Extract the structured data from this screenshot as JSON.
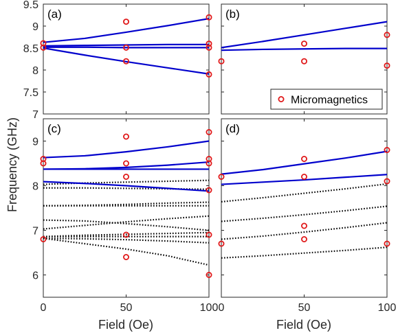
{
  "figure": {
    "ylabel": "Frequency (GHz)",
    "xlabel": "Field (Oe)",
    "legend_label": "Micromagnetics"
  },
  "colors": {
    "theory_line": "#0000cc",
    "dotted_line": "#000000",
    "marker": "#e0191a",
    "axes": "#262626"
  },
  "chart_data": [
    {
      "type": "line",
      "panel": "(a)",
      "xlim": [
        0,
        100
      ],
      "ylim": [
        7,
        9.5
      ],
      "xticks": [
        0,
        50,
        100
      ],
      "yticks": [
        7,
        7.5,
        8,
        8.5,
        9,
        9.5
      ],
      "ytick_labels": [
        "7",
        "7.5",
        "8",
        "8.5",
        "9",
        "9.5"
      ],
      "show_xtick_labels": false,
      "show_ytick_labels": true,
      "solid_lines": [
        {
          "x": [
            0,
            25,
            50,
            75,
            100
          ],
          "y": [
            8.63,
            8.72,
            8.86,
            9.01,
            9.17
          ]
        },
        {
          "x": [
            0,
            25,
            50,
            75,
            100
          ],
          "y": [
            8.55,
            8.56,
            8.57,
            8.58,
            8.58
          ]
        },
        {
          "x": [
            0,
            25,
            50,
            75,
            100
          ],
          "y": [
            8.52,
            8.52,
            8.51,
            8.51,
            8.51
          ]
        },
        {
          "x": [
            0,
            25,
            50,
            75,
            100
          ],
          "y": [
            8.5,
            8.34,
            8.19,
            8.05,
            7.91
          ]
        }
      ],
      "dotted_lines": [],
      "markers": {
        "x": [
          0,
          0,
          50,
          50,
          50,
          100,
          100,
          100,
          100
        ],
        "y": [
          8.61,
          8.51,
          9.1,
          8.51,
          8.2,
          9.2,
          8.6,
          8.51,
          7.9
        ]
      }
    },
    {
      "type": "line",
      "panel": "(b)",
      "xlim": [
        0,
        100
      ],
      "ylim": [
        7,
        9.5
      ],
      "xticks": [
        0,
        50,
        100
      ],
      "yticks": [
        7,
        7.5,
        8,
        8.5,
        9,
        9.5
      ],
      "ytick_labels": [],
      "show_xtick_labels": false,
      "show_ytick_labels": false,
      "legend": {
        "position": "bottom-right"
      },
      "solid_lines": [
        {
          "x": [
            0,
            25,
            50,
            75,
            100
          ],
          "y": [
            8.51,
            8.65,
            8.8,
            8.95,
            9.1
          ]
        },
        {
          "x": [
            0,
            25,
            50,
            75,
            100
          ],
          "y": [
            8.45,
            8.47,
            8.48,
            8.49,
            8.49
          ]
        }
      ],
      "dotted_lines": [],
      "markers": {
        "x": [
          0,
          50,
          50,
          100,
          100
        ],
        "y": [
          8.2,
          8.6,
          8.2,
          8.8,
          8.1
        ]
      }
    },
    {
      "type": "line",
      "panel": "(c)",
      "xlim": [
        0,
        100
      ],
      "ylim": [
        5.5,
        9.5
      ],
      "xticks": [
        0,
        50,
        100
      ],
      "xtick_labels": [
        "0",
        "50",
        "100"
      ],
      "yticks": [
        6,
        7,
        8,
        9
      ],
      "ytick_labels": [
        "6",
        "7",
        "8",
        "9"
      ],
      "show_xtick_labels": true,
      "show_ytick_labels": true,
      "solid_lines": [
        {
          "x": [
            0,
            25,
            50,
            75,
            100
          ],
          "y": [
            8.63,
            8.67,
            8.76,
            8.87,
            9.0
          ]
        },
        {
          "x": [
            0,
            25,
            50,
            75,
            100
          ],
          "y": [
            8.37,
            8.38,
            8.41,
            8.46,
            8.53
          ]
        },
        {
          "x": [
            0,
            25,
            50,
            75,
            100
          ],
          "y": [
            8.37,
            8.37,
            8.37,
            8.37,
            8.37
          ]
        },
        {
          "x": [
            0,
            25,
            50,
            75,
            100
          ],
          "y": [
            8.09,
            8.05,
            8.0,
            7.94,
            7.88
          ]
        }
      ],
      "dotted_lines": [
        {
          "x": [
            0,
            25,
            50,
            75,
            100
          ],
          "y": [
            8.03,
            8.06,
            8.08,
            8.1,
            8.12
          ]
        },
        {
          "x": [
            0,
            25,
            50,
            75,
            100
          ],
          "y": [
            7.95,
            7.95,
            7.94,
            7.93,
            7.92
          ]
        },
        {
          "x": [
            0,
            25,
            50,
            75,
            100
          ],
          "y": [
            7.55,
            7.56,
            7.58,
            7.61,
            7.63
          ]
        },
        {
          "x": [
            0,
            25,
            50,
            75,
            100
          ],
          "y": [
            7.55,
            7.55,
            7.55,
            7.55,
            7.55
          ]
        },
        {
          "x": [
            0,
            25,
            50,
            75,
            100
          ],
          "y": [
            7.23,
            7.21,
            7.15,
            7.08,
            7.0
          ]
        },
        {
          "x": [
            0,
            25,
            50,
            75,
            100
          ],
          "y": [
            7.03,
            7.11,
            7.19,
            7.26,
            7.32
          ]
        },
        {
          "x": [
            0,
            25,
            50,
            75,
            100
          ],
          "y": [
            6.86,
            6.89,
            6.91,
            6.93,
            6.95
          ]
        },
        {
          "x": [
            0,
            25,
            50,
            75,
            100
          ],
          "y": [
            6.86,
            6.86,
            6.86,
            6.86,
            6.86
          ]
        },
        {
          "x": [
            0,
            25,
            50,
            75,
            100
          ],
          "y": [
            6.82,
            6.81,
            6.79,
            6.76,
            6.72
          ]
        },
        {
          "x": [
            0,
            25,
            50,
            75,
            100
          ],
          "y": [
            6.82,
            6.7,
            6.58,
            6.43,
            6.22
          ]
        }
      ],
      "markers": {
        "x": [
          0,
          0,
          0,
          50,
          50,
          50,
          50,
          50,
          100,
          100,
          100,
          100,
          100,
          100
        ],
        "y": [
          8.6,
          8.5,
          6.8,
          9.1,
          8.5,
          8.2,
          6.9,
          6.4,
          9.2,
          8.6,
          8.5,
          7.9,
          6.9,
          6.0
        ]
      }
    },
    {
      "type": "line",
      "panel": "(d)",
      "xlim": [
        0,
        100
      ],
      "ylim": [
        5.5,
        9.5
      ],
      "xticks": [
        0,
        50,
        100
      ],
      "xtick_labels": [
        "0",
        "50",
        "100"
      ],
      "yticks": [
        6,
        7,
        8,
        9
      ],
      "ytick_labels": [],
      "show_xtick_labels": true,
      "show_ytick_labels": false,
      "solid_lines": [
        {
          "x": [
            0,
            25,
            50,
            75,
            100
          ],
          "y": [
            8.26,
            8.36,
            8.49,
            8.62,
            8.77
          ]
        },
        {
          "x": [
            0,
            25,
            50,
            75,
            100
          ],
          "y": [
            8.03,
            8.08,
            8.13,
            8.19,
            8.25
          ]
        }
      ],
      "dotted_lines": [
        {
          "x": [
            0,
            25,
            50,
            75,
            100
          ],
          "y": [
            7.64,
            7.73,
            7.83,
            7.93,
            8.04
          ]
        },
        {
          "x": [
            0,
            25,
            50,
            75,
            100
          ],
          "y": [
            7.2,
            7.27,
            7.35,
            7.44,
            7.54
          ]
        },
        {
          "x": [
            0,
            25,
            50,
            75,
            100
          ],
          "y": [
            6.8,
            6.87,
            6.96,
            7.06,
            7.17
          ]
        },
        {
          "x": [
            0,
            25,
            50,
            75,
            100
          ],
          "y": [
            6.38,
            6.43,
            6.49,
            6.55,
            6.62
          ]
        }
      ],
      "markers": {
        "x": [
          0,
          0,
          50,
          50,
          50,
          50,
          100,
          100,
          100
        ],
        "y": [
          8.2,
          6.7,
          8.6,
          8.2,
          7.1,
          6.8,
          8.8,
          8.1,
          6.7
        ]
      }
    }
  ]
}
